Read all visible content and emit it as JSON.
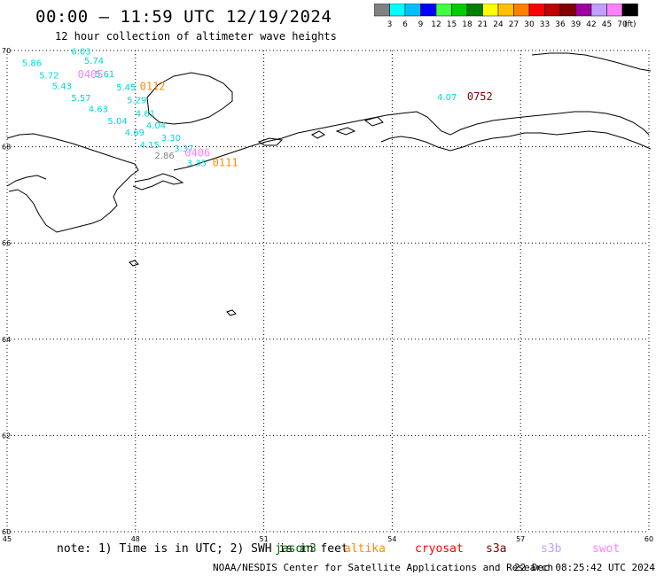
{
  "title": "00:00 – 11:59 UTC 12/19/2024",
  "subtitle": "12 hour collection of altimeter wave heights",
  "legend": {
    "colors": [
      "#808080",
      "#00ffff",
      "#00bfff",
      "#0000ff",
      "#40ff40",
      "#00cc00",
      "#008000",
      "#ffff00",
      "#ffc000",
      "#ff8000",
      "#ff0000",
      "#c00000",
      "#800000",
      "#a000a0",
      "#c0a0ff",
      "#ff80ff",
      "#000000"
    ],
    "labels": [
      "3",
      "6",
      "9",
      "12",
      "15",
      "18",
      "21",
      "24",
      "27",
      "30",
      "33",
      "36",
      "39",
      "42",
      "45",
      "70",
      "(ft)"
    ]
  },
  "map": {
    "lon_range": [
      45,
      60
    ],
    "lat_range": [
      60,
      70
    ],
    "lon_ticks": [
      "45",
      "48",
      "51",
      "54",
      "57",
      "60"
    ],
    "lat_ticks": [
      "70",
      "68",
      "66",
      "64",
      "62",
      "60"
    ],
    "grid": "dotted"
  },
  "observations": [
    {
      "text": "6.03",
      "lon": 46.5,
      "lat": 69.92,
      "color": "#00d8d8"
    },
    {
      "text": "5.86",
      "lon": 45.35,
      "lat": 69.68,
      "color": "#00d8d8"
    },
    {
      "text": "5.74",
      "lon": 46.8,
      "lat": 69.72,
      "color": "#00d8d8"
    },
    {
      "text": "5.72",
      "lon": 45.75,
      "lat": 69.42,
      "color": "#00d8d8"
    },
    {
      "text": "5.61",
      "lon": 47.05,
      "lat": 69.45,
      "color": "#00d8d8"
    },
    {
      "text": "5.43",
      "lon": 46.05,
      "lat": 69.2,
      "color": "#00d8d8"
    },
    {
      "text": "5.45",
      "lon": 47.55,
      "lat": 69.17,
      "color": "#00d8d8"
    },
    {
      "text": "5.57",
      "lon": 46.5,
      "lat": 68.95,
      "color": "#00d8d8"
    },
    {
      "text": "5.29",
      "lon": 47.8,
      "lat": 68.9,
      "color": "#00d8d8"
    },
    {
      "text": "4.63",
      "lon": 46.9,
      "lat": 68.72,
      "color": "#00d8d8"
    },
    {
      "text": "4.61",
      "lon": 48.0,
      "lat": 68.63,
      "color": "#00d8d8"
    },
    {
      "text": "5.04",
      "lon": 47.35,
      "lat": 68.47,
      "color": "#00d8d8"
    },
    {
      "text": "4.04",
      "lon": 48.25,
      "lat": 68.38,
      "color": "#00d8d8"
    },
    {
      "text": "4.69",
      "lon": 47.75,
      "lat": 68.23,
      "color": "#00d8d8"
    },
    {
      "text": "3.30",
      "lon": 48.6,
      "lat": 68.12,
      "color": "#00d8d8"
    },
    {
      "text": "4.15",
      "lon": 48.1,
      "lat": 67.97,
      "color": "#00d8d8"
    },
    {
      "text": "3.37",
      "lon": 48.9,
      "lat": 67.9,
      "color": "#00d8d8"
    },
    {
      "text": "2.86",
      "lon": 48.45,
      "lat": 67.75,
      "color": "#808080"
    },
    {
      "text": "4.07",
      "lon": 55.05,
      "lat": 68.97,
      "color": "#00d8d8"
    },
    {
      "text": "3.35",
      "lon": 49.2,
      "lat": 67.6,
      "color": "#00d8d8"
    }
  ],
  "times": [
    {
      "text": "0405",
      "lon": 46.65,
      "lat": 69.43,
      "color": "#ff80ff"
    },
    {
      "text": "0112",
      "lon": 48.1,
      "lat": 69.18,
      "color": "#ff8c00"
    },
    {
      "text": "0752",
      "lon": 55.75,
      "lat": 68.97,
      "color": "#800000"
    },
    {
      "text": "0406",
      "lon": 49.15,
      "lat": 67.8,
      "color": "#ff80ff"
    },
    {
      "text": "0111",
      "lon": 49.8,
      "lat": 67.6,
      "color": "#ff8c00"
    }
  ],
  "note": "note: 1) Time is in UTC; 2) SWH is in feet",
  "satellites": [
    {
      "name": "jason3",
      "color": "#006400"
    },
    {
      "name": "altika",
      "color": "#ff8c00"
    },
    {
      "name": "cryosat",
      "color": "#ff0000"
    },
    {
      "name": "s3a",
      "color": "#800000"
    },
    {
      "name": "s3b",
      "color": "#c0a0ff"
    },
    {
      "name": "swot",
      "color": "#ff80ff"
    }
  ],
  "credit": "NOAA/NESDIS Center for Satellite Applications and Research",
  "generated": "22 Dec 08:25:42 UTC 2024"
}
